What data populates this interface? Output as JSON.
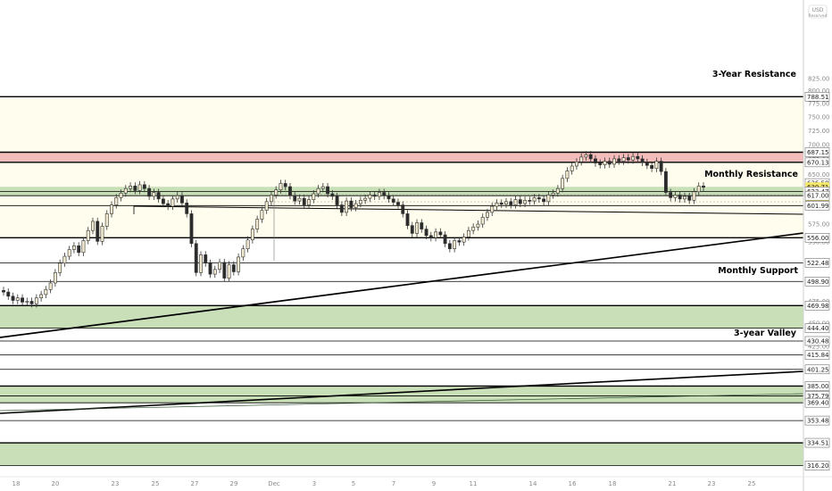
{
  "chart": {
    "currency": "USD",
    "currency_sub": "Reserved",
    "colors": {
      "background": "#ffffff",
      "resistance_bg": "#fffdee",
      "green_zone": "#c8dfb8",
      "red_zone": "#f5bcbc",
      "bull_candle": "#f2ead0",
      "bear_candle": "#2b2b2b",
      "wick": "#333333",
      "line": "#000000",
      "price_tag": "#f7e96b"
    },
    "labels": {
      "three_year_resistance": "3-Year Resistance",
      "monthly_resistance": "Monthly Resistance",
      "monthly_support": "Monthly Support",
      "three_year_valley": "3-year Valley"
    },
    "current_price_tag": "630.71",
    "countdown_tag": "36:44"
  },
  "chart_data": {
    "type": "candlestick",
    "y_scale": "log",
    "ylim": [
      310,
      880
    ],
    "x_ticks": [
      "18",
      "20",
      "23",
      "25",
      "27",
      "29",
      "Dec",
      "3",
      "5",
      "7",
      "9",
      "11",
      "14",
      "16",
      "18",
      "21",
      "23",
      "25"
    ],
    "y_axis_ticks": [
      "825.00",
      "800.00",
      "775.00",
      "750.00",
      "725.00",
      "700.00",
      "675.00",
      "650.00",
      "600.00",
      "575.00",
      "550.00",
      "525.00",
      "500.00",
      "475.00",
      "450.00",
      "425.00"
    ],
    "level_labels": [
      "788.51",
      "687.15",
      "670.13",
      "636.58",
      "630.71",
      "36:44",
      "623.47",
      "617.00",
      "601.99",
      "556.00",
      "522.48",
      "498.90",
      "469.98",
      "444.40",
      "430.48",
      "415.84",
      "401.25",
      "385.00",
      "375.79",
      "369.40",
      "353.48",
      "334.51",
      "316.20"
    ],
    "horizontal_levels": [
      788.51,
      687.15,
      670.13,
      636.58,
      630.71,
      623.47,
      617.0,
      601.99,
      556.0,
      522.48,
      498.9,
      469.98,
      444.4,
      430.48,
      415.84,
      401.25,
      385.0,
      375.79,
      369.4,
      353.48,
      334.51,
      316.2
    ],
    "zones": [
      {
        "kind": "resistance",
        "from": 687.15,
        "to": 788.51
      },
      {
        "kind": "red",
        "from": 670.13,
        "to": 687.15
      },
      {
        "kind": "resistance",
        "from": 556.0,
        "to": 670.13
      },
      {
        "kind": "green",
        "from": 617.0,
        "to": 630.71
      },
      {
        "kind": "green",
        "from": 444.4,
        "to": 469.98
      },
      {
        "kind": "green",
        "from": 369.4,
        "to": 385.0
      },
      {
        "kind": "green",
        "from": 316.2,
        "to": 334.51
      }
    ],
    "closes": [
      486,
      481,
      476,
      479,
      474,
      475,
      472,
      479,
      483,
      489,
      497,
      510,
      522,
      531,
      540,
      545,
      536,
      552,
      566,
      579,
      551,
      572,
      590,
      603,
      614,
      621,
      628,
      632,
      625,
      634,
      628,
      616,
      622,
      612,
      605,
      601,
      612,
      617,
      606,
      590,
      548,
      510,
      533,
      522,
      508,
      514,
      523,
      503,
      520,
      511,
      530,
      541,
      553,
      568,
      582,
      595,
      608,
      618,
      626,
      636,
      631,
      617,
      609,
      613,
      603,
      611,
      620,
      628,
      631,
      620,
      616,
      603,
      592,
      609,
      599,
      605,
      610,
      613,
      618,
      616,
      622,
      617,
      612,
      607,
      603,
      590,
      573,
      562,
      577,
      568,
      559,
      556,
      564,
      560,
      548,
      541,
      552,
      550,
      557,
      566,
      571,
      575,
      585,
      592,
      601,
      606,
      604,
      608,
      603,
      611,
      605,
      610,
      609,
      614,
      612,
      608,
      618,
      621,
      628,
      644,
      656,
      664,
      671,
      679,
      683,
      676,
      669,
      666,
      672,
      667,
      676,
      672,
      678,
      674,
      680,
      676,
      670,
      665,
      660,
      672,
      655,
      622,
      614,
      618,
      612,
      616,
      610,
      623,
      632,
      630
    ]
  }
}
